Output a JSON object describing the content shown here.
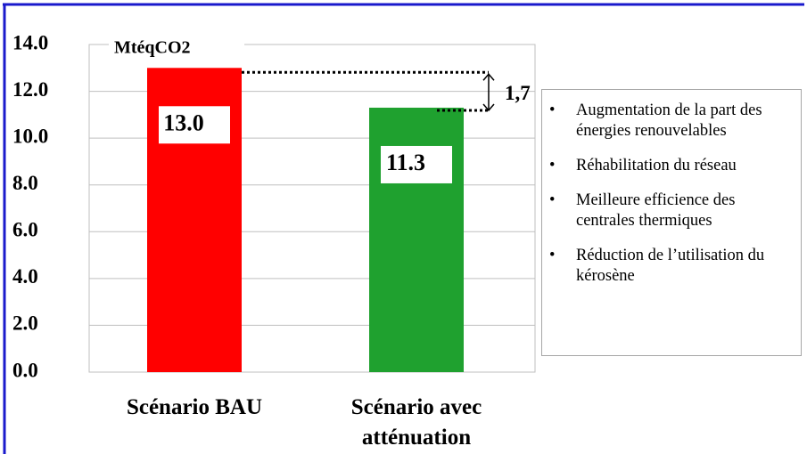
{
  "chart_data": {
    "type": "bar",
    "unit_label": "MtéqCO2",
    "categories": [
      "Scénario BAU",
      "Scénario avec atténuation"
    ],
    "values": [
      13.0,
      11.3
    ],
    "value_labels": [
      "13.0",
      "11.3"
    ],
    "colors": [
      "#ff0000",
      "#1fa12f"
    ],
    "ylim": [
      0,
      14
    ],
    "yticks": [
      {
        "value": 0,
        "label": "0.0"
      },
      {
        "value": 2,
        "label": "2.0"
      },
      {
        "value": 4,
        "label": "4.0"
      },
      {
        "value": 6,
        "label": "6.0"
      },
      {
        "value": 8,
        "label": "8.0"
      },
      {
        "value": 10,
        "label": "10.0"
      },
      {
        "value": 12,
        "label": "12.0"
      },
      {
        "value": 14,
        "label": "14.0"
      }
    ],
    "grid": true,
    "difference_label": "1,7",
    "notes": [
      "Augmentation de la part des énergies renouvelables",
      "Réhabilitation du réseau",
      "Meilleure efficience des centrales thermiques",
      "Réduction de l’utilisation du kérosène"
    ]
  }
}
